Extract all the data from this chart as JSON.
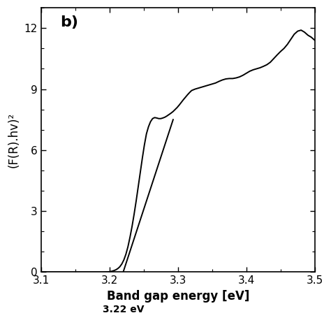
{
  "title": "b)",
  "xlabel": "Band gap energy [eV]",
  "ylabel": "(F(R).hv)²",
  "xlim": [
    3.1,
    3.5
  ],
  "ylim": [
    0,
    13
  ],
  "yticks": [
    0,
    3,
    6,
    9,
    12
  ],
  "xticks": [
    3.1,
    3.2,
    3.3,
    3.4,
    3.5
  ],
  "annotation_text": "3.22 eV",
  "tangent_line_x": [
    3.22,
    3.293
  ],
  "tangent_line_y": [
    0.0,
    7.5
  ],
  "curve_x": [
    3.1,
    3.11,
    3.12,
    3.13,
    3.14,
    3.15,
    3.16,
    3.17,
    3.18,
    3.19,
    3.195,
    3.2,
    3.203,
    3.206,
    3.209,
    3.212,
    3.215,
    3.218,
    3.221,
    3.224,
    3.227,
    3.23,
    3.233,
    3.236,
    3.239,
    3.242,
    3.245,
    3.248,
    3.251,
    3.254,
    3.257,
    3.26,
    3.263,
    3.266,
    3.269,
    3.272,
    3.275,
    3.278,
    3.281,
    3.284,
    3.287,
    3.29,
    3.293,
    3.296,
    3.299,
    3.302,
    3.305,
    3.308,
    3.311,
    3.314,
    3.317,
    3.32,
    3.325,
    3.33,
    3.335,
    3.34,
    3.345,
    3.35,
    3.355,
    3.36,
    3.365,
    3.37,
    3.375,
    3.38,
    3.385,
    3.39,
    3.395,
    3.4,
    3.405,
    3.41,
    3.415,
    3.42,
    3.425,
    3.43,
    3.435,
    3.44,
    3.445,
    3.45,
    3.455,
    3.46,
    3.465,
    3.47,
    3.475,
    3.48,
    3.485,
    3.49,
    3.495,
    3.5
  ],
  "curve_y": [
    0.0,
    0.0,
    0.0,
    0.0,
    0.0,
    0.0,
    0.0,
    0.0,
    0.0,
    0.0,
    0.01,
    0.02,
    0.04,
    0.07,
    0.11,
    0.17,
    0.26,
    0.4,
    0.6,
    0.88,
    1.25,
    1.72,
    2.25,
    2.85,
    3.5,
    4.2,
    4.9,
    5.6,
    6.25,
    6.8,
    7.15,
    7.4,
    7.55,
    7.6,
    7.58,
    7.55,
    7.55,
    7.58,
    7.62,
    7.68,
    7.75,
    7.82,
    7.9,
    8.0,
    8.1,
    8.22,
    8.35,
    8.48,
    8.6,
    8.72,
    8.83,
    8.93,
    9.0,
    9.05,
    9.1,
    9.15,
    9.2,
    9.25,
    9.3,
    9.38,
    9.45,
    9.5,
    9.52,
    9.52,
    9.55,
    9.6,
    9.68,
    9.78,
    9.88,
    9.95,
    10.0,
    10.05,
    10.12,
    10.2,
    10.32,
    10.5,
    10.68,
    10.85,
    11.0,
    11.2,
    11.45,
    11.7,
    11.85,
    11.9,
    11.8,
    11.65,
    11.55,
    11.4
  ],
  "line_color": "black",
  "background_color": "white",
  "linewidth": 1.4
}
